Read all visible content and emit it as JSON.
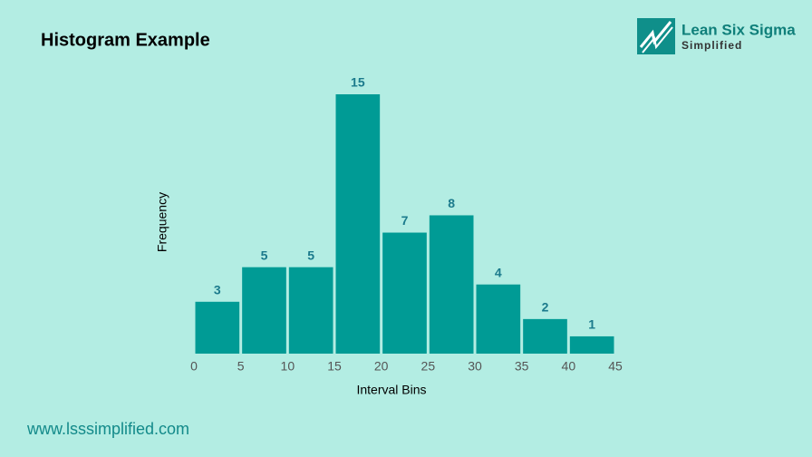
{
  "chart_data": {
    "type": "histogram",
    "title": "Histogram Example",
    "x_label": "Interval Bins",
    "y_label": "Frequency",
    "bins": [
      0,
      5,
      10,
      15,
      20,
      25,
      30,
      35,
      40,
      45
    ],
    "values": [
      3,
      5,
      5,
      15,
      7,
      8,
      4,
      2,
      1
    ],
    "color": "#009b95",
    "label_color": "#1b7a8c",
    "xlim": [
      0,
      45
    ],
    "xticks": [
      0,
      5,
      10,
      15,
      20,
      25,
      30,
      35,
      40,
      45
    ],
    "ylim": [
      0,
      15
    ],
    "grid": false
  },
  "logo": {
    "name": "Lean Six Sigma",
    "tagline": "Simplified"
  },
  "footer": "www.lsssimplified.com"
}
